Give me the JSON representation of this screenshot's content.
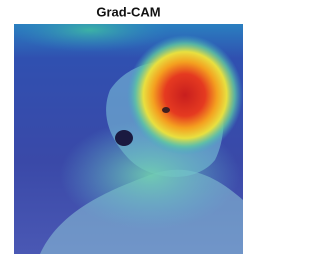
{
  "title": "Grad-CAM"
}
